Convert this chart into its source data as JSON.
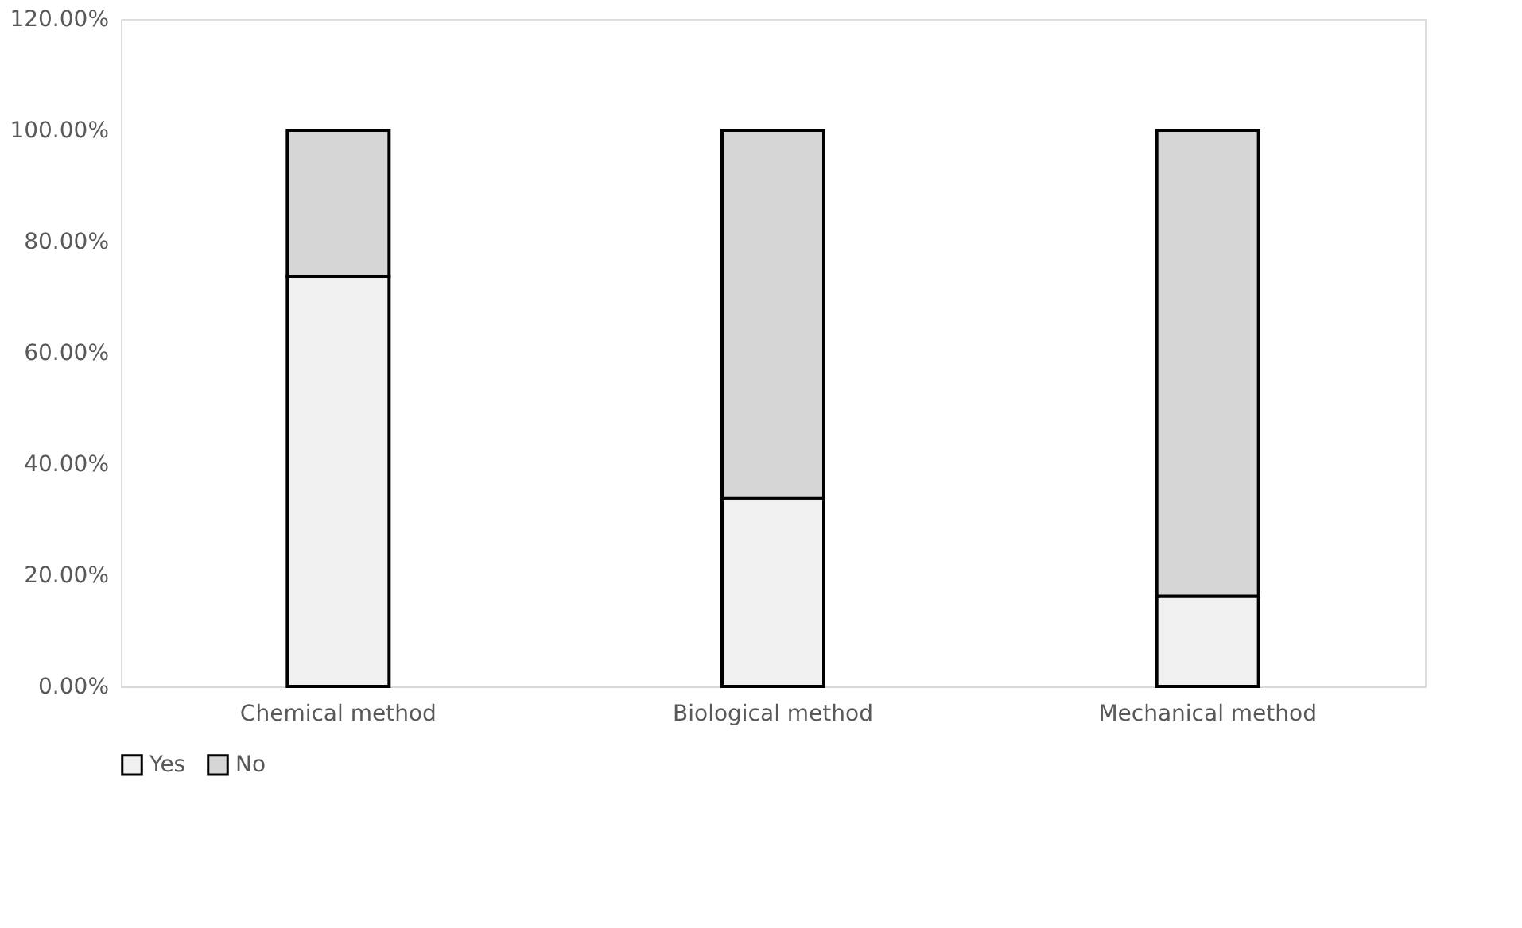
{
  "chart_data": {
    "type": "bar",
    "stacked": true,
    "categories": [
      "Chemical method",
      "Biological method",
      "Mechanical method"
    ],
    "series": [
      {
        "name": "Yes",
        "color": "#f0f0f0",
        "values": [
          73.7,
          33.9,
          16.2
        ]
      },
      {
        "name": "No",
        "color": "#d6d6d6",
        "values": [
          26.3,
          66.1,
          83.8
        ]
      }
    ],
    "ylim": [
      0,
      120
    ],
    "yticks": [
      {
        "value": 0,
        "label": "0.00%"
      },
      {
        "value": 20,
        "label": "20.00%"
      },
      {
        "value": 40,
        "label": "40.00%"
      },
      {
        "value": 60,
        "label": "60.00%"
      },
      {
        "value": 80,
        "label": "80.00%"
      },
      {
        "value": 100,
        "label": "100.00%"
      },
      {
        "value": 120,
        "label": "120.00%"
      }
    ],
    "grid": false,
    "legend": "bottom"
  }
}
